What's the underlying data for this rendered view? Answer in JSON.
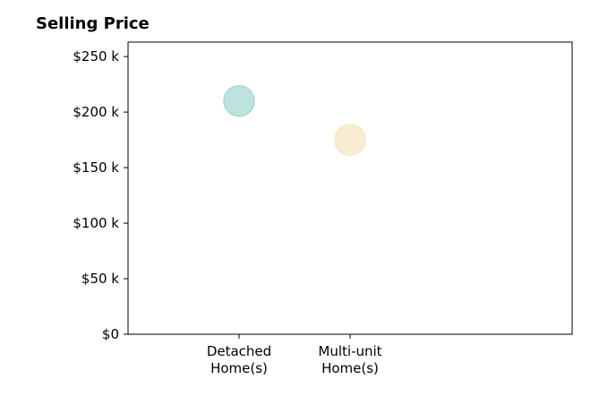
{
  "chart_data": {
    "type": "scatter",
    "title": "Selling Price",
    "categories": [
      "Detached\nHome(s)",
      "Multi-unit\nHome(s)"
    ],
    "values": [
      210000,
      175000
    ],
    "point_colors": [
      "#a8d8d3",
      "#f7e6c4"
    ],
    "ylim": [
      0,
      263000
    ],
    "yticks": [
      0,
      50000,
      100000,
      150000,
      200000,
      250000
    ],
    "ytick_labels": [
      "$0",
      "$50 k",
      "$100 k",
      "$150 k",
      "$200 k",
      "$250 k"
    ],
    "xlabel": "",
    "ylabel": "",
    "grid": false,
    "legend": "none"
  }
}
